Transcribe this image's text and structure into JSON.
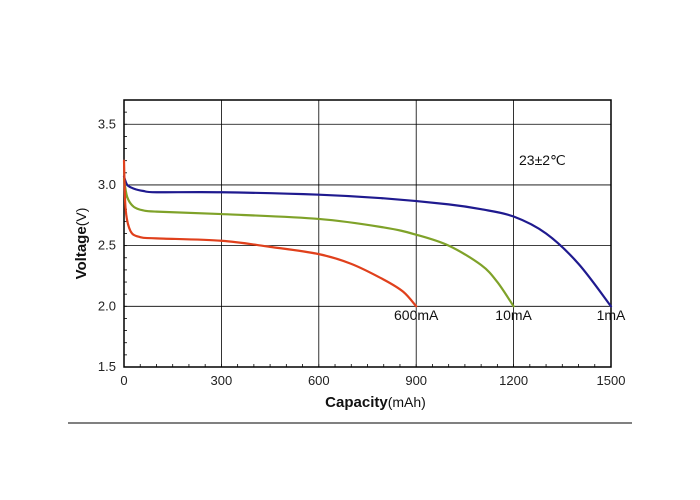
{
  "chart_data": {
    "type": "line",
    "xlabel_bold": "Capacity",
    "xlabel_unit": "(mAh)",
    "ylabel_bold": "Voltage",
    "ylabel_unit": "(V)",
    "xlim": [
      0,
      1500
    ],
    "ylim": [
      1.5,
      3.7
    ],
    "xticks": [
      0,
      300,
      600,
      900,
      1200,
      1500
    ],
    "xtick_labels": [
      "0",
      "300",
      "600",
      "900",
      "1200",
      "1500"
    ],
    "yticks": [
      1.5,
      2.0,
      2.5,
      3.0,
      3.5
    ],
    "ytick_labels": [
      "1.5",
      "2.0",
      "2.5",
      "3.0",
      "3.5"
    ],
    "grid": true,
    "annotation": "23±2℃",
    "series": [
      {
        "name": "1mA",
        "color": "#1f1a8f",
        "x": [
          0,
          10,
          30,
          60,
          100,
          300,
          600,
          800,
          1000,
          1100,
          1200,
          1300,
          1400,
          1500
        ],
        "y": [
          3.07,
          3.0,
          2.97,
          2.95,
          2.94,
          2.94,
          2.92,
          2.89,
          2.84,
          2.8,
          2.74,
          2.6,
          2.35,
          2.0
        ]
      },
      {
        "name": "10mA",
        "color": "#7fa229",
        "x": [
          0,
          10,
          30,
          60,
          100,
          300,
          600,
          800,
          900,
          1000,
          1100,
          1150,
          1200
        ],
        "y": [
          3.05,
          2.9,
          2.82,
          2.79,
          2.78,
          2.76,
          2.72,
          2.65,
          2.59,
          2.5,
          2.34,
          2.2,
          2.0
        ],
        "label_y": 1.93
      },
      {
        "name": "600mA",
        "color": "#e0401c",
        "x": [
          0,
          5,
          20,
          50,
          100,
          300,
          450,
          600,
          700,
          800,
          860,
          900
        ],
        "y": [
          3.2,
          2.8,
          2.62,
          2.57,
          2.56,
          2.54,
          2.49,
          2.43,
          2.35,
          2.22,
          2.12,
          2.0
        ]
      }
    ]
  }
}
